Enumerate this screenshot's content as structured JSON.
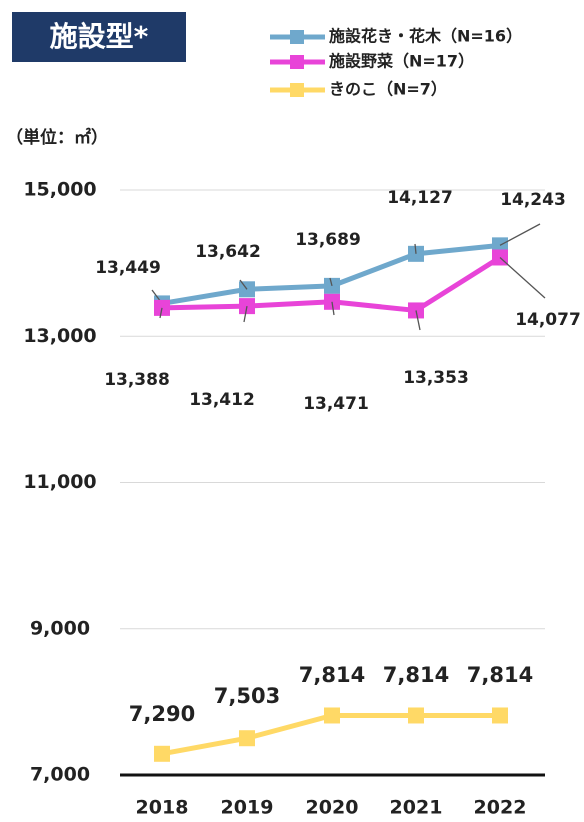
{
  "chart_data": {
    "type": "line",
    "title": "施設型*",
    "unit_label": "（単位：㎡）",
    "categories": [
      "2018",
      "2019",
      "2020",
      "2021",
      "2022"
    ],
    "series": [
      {
        "name": "施設花き・花木（N=16）",
        "color": "#6fa8cc",
        "values": [
          13449,
          13642,
          13689,
          14127,
          14243
        ],
        "value_labels": [
          "13,449",
          "13,642",
          "13,689",
          "14,127",
          "14,243"
        ]
      },
      {
        "name": "施設野菜（N=17）",
        "color": "#e844d8",
        "values": [
          13388,
          13412,
          13471,
          13353,
          14077
        ],
        "value_labels": [
          "13,388",
          "13,412",
          "13,471",
          "13,353",
          "14,077"
        ]
      },
      {
        "name": "きのこ（N=7）",
        "color": "#ffd966",
        "values": [
          7290,
          7503,
          7814,
          7814,
          7814
        ],
        "value_labels": [
          "7,290",
          "7,503",
          "7,814",
          "7,814",
          "7,814"
        ]
      }
    ],
    "ylim": [
      7000,
      15000
    ],
    "yticks": [
      {
        "value": 7000,
        "label": "7,000"
      },
      {
        "value": 9000,
        "label": "9,000"
      },
      {
        "value": 11000,
        "label": "11,000"
      },
      {
        "value": 13000,
        "label": "13,000"
      },
      {
        "value": 15000,
        "label": "15,000"
      }
    ],
    "grid": true,
    "legend": "top-right"
  }
}
